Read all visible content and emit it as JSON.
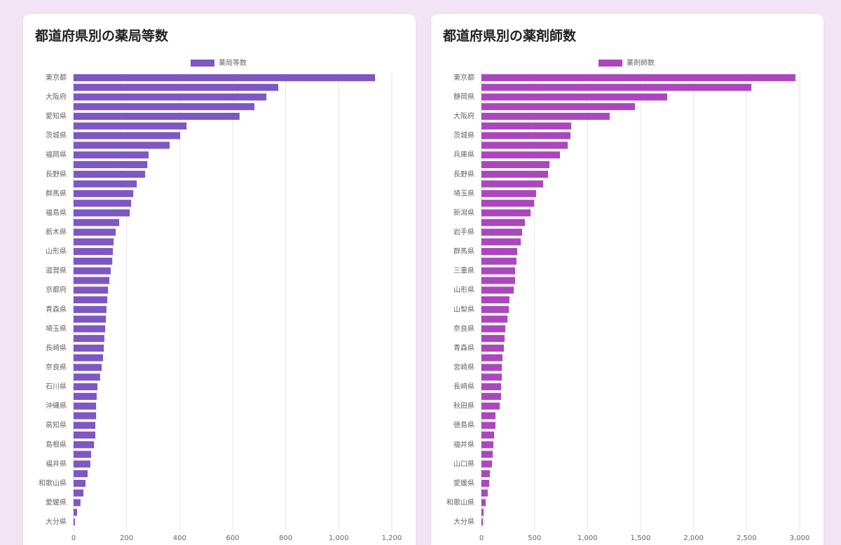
{
  "chart_data": [
    {
      "type": "bar",
      "title": "都道府県別の薬局等数",
      "legend_position": "top",
      "series": [
        {
          "name": "薬局等数",
          "color": "#7e57c2",
          "values": [
            1137,
            772,
            727,
            682,
            626,
            426,
            402,
            362,
            283,
            278,
            270,
            238,
            225,
            217,
            212,
            172,
            159,
            151,
            148,
            146,
            140,
            135,
            130,
            127,
            124,
            122,
            119,
            116,
            114,
            111,
            106,
            100,
            90,
            87,
            85,
            85,
            82,
            82,
            77,
            66,
            63,
            53,
            45,
            37,
            26,
            13,
            5
          ]
        }
      ],
      "categories": [
        "東京都",
        null,
        "大阪府",
        null,
        "愛知県",
        null,
        "茨城県",
        null,
        "福岡県",
        null,
        "長野県",
        null,
        "群馬県",
        null,
        "福島県",
        null,
        "栃木県",
        null,
        "山形県",
        null,
        "滋賀県",
        null,
        "京都府",
        null,
        "青森県",
        null,
        "埼玉県",
        null,
        "長崎県",
        null,
        "奈良県",
        null,
        "石川県",
        null,
        "沖縄県",
        null,
        "高知県",
        null,
        "島根県",
        null,
        "福井県",
        null,
        "和歌山県",
        null,
        "愛媛県",
        null,
        "大分県"
      ],
      "xlim": [
        0,
        1200
      ],
      "xticks": [
        0,
        200,
        400,
        600,
        800,
        {
          "value": 1000,
          "label": "1,000"
        },
        {
          "value": 1200,
          "label": "1,200"
        }
      ],
      "grid": true
    },
    {
      "type": "bar",
      "title": "都道府県別の薬剤師数",
      "legend_position": "top",
      "series": [
        {
          "name": "薬剤師数",
          "color": "#ab47bc",
          "values": [
            2960,
            2545,
            1751,
            1447,
            1209,
            846,
            839,
            813,
            740,
            641,
            628,
            582,
            515,
            496,
            463,
            410,
            383,
            370,
            337,
            330,
            317,
            317,
            304,
            264,
            258,
            245,
            225,
            218,
            211,
            198,
            192,
            192,
            185,
            185,
            172,
            132,
            132,
            119,
            112,
            106,
            99,
            79,
            73,
            59,
            40,
            20,
            13
          ]
        }
      ],
      "categories": [
        "東京都",
        null,
        "静岡県",
        null,
        "大阪府",
        null,
        "茨城県",
        null,
        "兵庫県",
        null,
        "長野県",
        null,
        "埼玉県",
        null,
        "新潟県",
        null,
        "岩手県",
        null,
        "群馬県",
        null,
        "三重県",
        null,
        "山形県",
        null,
        "山梨県",
        null,
        "奈良県",
        null,
        "青森県",
        null,
        "宮崎県",
        null,
        "長崎県",
        null,
        "秋田県",
        null,
        "徳島県",
        null,
        "福井県",
        null,
        "山口県",
        null,
        "愛媛県",
        null,
        "和歌山県",
        null,
        "大分県"
      ],
      "xlim": [
        0,
        3000
      ],
      "xticks": [
        0,
        500,
        {
          "value": 1000,
          "label": "1,000"
        },
        {
          "value": 1500,
          "label": "1,500"
        },
        {
          "value": 2000,
          "label": "2,000"
        },
        {
          "value": 2500,
          "label": "2,500"
        },
        {
          "value": 3000,
          "label": "3,000"
        }
      ],
      "grid": true
    }
  ]
}
